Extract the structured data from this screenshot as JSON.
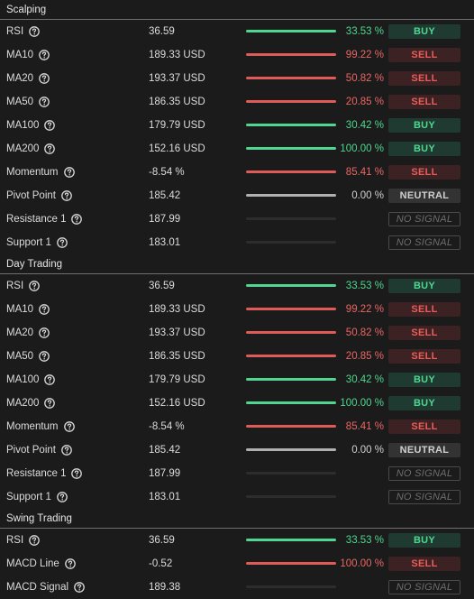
{
  "colors": {
    "buy": "#4fd690",
    "sell": "#e05b57",
    "neutral": "#b0b0b0",
    "background": "#1b1b1b"
  },
  "icons": {
    "help": "question-circle-icon"
  },
  "sections": [
    {
      "title": "Scalping",
      "rows": [
        {
          "name": "RSI",
          "value": "36.59",
          "percent": "33.53 %",
          "signal": "BUY",
          "kind": "buy"
        },
        {
          "name": "MA10",
          "value": "189.33 USD",
          "percent": "99.22 %",
          "signal": "SELL",
          "kind": "sell"
        },
        {
          "name": "MA20",
          "value": "193.37 USD",
          "percent": "50.82 %",
          "signal": "SELL",
          "kind": "sell"
        },
        {
          "name": "MA50",
          "value": "186.35 USD",
          "percent": "20.85 %",
          "signal": "SELL",
          "kind": "sell"
        },
        {
          "name": "MA100",
          "value": "179.79 USD",
          "percent": "30.42 %",
          "signal": "BUY",
          "kind": "buy"
        },
        {
          "name": "MA200",
          "value": "152.16 USD",
          "percent": "100.00 %",
          "signal": "BUY",
          "kind": "buy"
        },
        {
          "name": "Momentum",
          "value": "-8.54 %",
          "percent": "85.41 %",
          "signal": "SELL",
          "kind": "sell"
        },
        {
          "name": "Pivot Point",
          "value": "185.42",
          "percent": "0.00 %",
          "signal": "NEUTRAL",
          "kind": "neutral"
        },
        {
          "name": "Resistance 1",
          "value": "187.99",
          "percent": "",
          "signal": "NO SIGNAL",
          "kind": "none"
        },
        {
          "name": "Support 1",
          "value": "183.01",
          "percent": "",
          "signal": "NO SIGNAL",
          "kind": "none"
        }
      ]
    },
    {
      "title": "Day Trading",
      "rows": [
        {
          "name": "RSI",
          "value": "36.59",
          "percent": "33.53 %",
          "signal": "BUY",
          "kind": "buy"
        },
        {
          "name": "MA10",
          "value": "189.33 USD",
          "percent": "99.22 %",
          "signal": "SELL",
          "kind": "sell"
        },
        {
          "name": "MA20",
          "value": "193.37 USD",
          "percent": "50.82 %",
          "signal": "SELL",
          "kind": "sell"
        },
        {
          "name": "MA50",
          "value": "186.35 USD",
          "percent": "20.85 %",
          "signal": "SELL",
          "kind": "sell"
        },
        {
          "name": "MA100",
          "value": "179.79 USD",
          "percent": "30.42 %",
          "signal": "BUY",
          "kind": "buy"
        },
        {
          "name": "MA200",
          "value": "152.16 USD",
          "percent": "100.00 %",
          "signal": "BUY",
          "kind": "buy"
        },
        {
          "name": "Momentum",
          "value": "-8.54 %",
          "percent": "85.41 %",
          "signal": "SELL",
          "kind": "sell"
        },
        {
          "name": "Pivot Point",
          "value": "185.42",
          "percent": "0.00 %",
          "signal": "NEUTRAL",
          "kind": "neutral"
        },
        {
          "name": "Resistance 1",
          "value": "187.99",
          "percent": "",
          "signal": "NO SIGNAL",
          "kind": "none"
        },
        {
          "name": "Support 1",
          "value": "183.01",
          "percent": "",
          "signal": "NO SIGNAL",
          "kind": "none"
        }
      ]
    },
    {
      "title": "Swing Trading",
      "rows": [
        {
          "name": "RSI",
          "value": "36.59",
          "percent": "33.53 %",
          "signal": "BUY",
          "kind": "buy"
        },
        {
          "name": "MACD Line",
          "value": "-0.52",
          "percent": "100.00 %",
          "signal": "SELL",
          "kind": "sell"
        },
        {
          "name": "MACD Signal",
          "value": "189.38",
          "percent": "",
          "signal": "NO SIGNAL",
          "kind": "none"
        }
      ]
    }
  ]
}
